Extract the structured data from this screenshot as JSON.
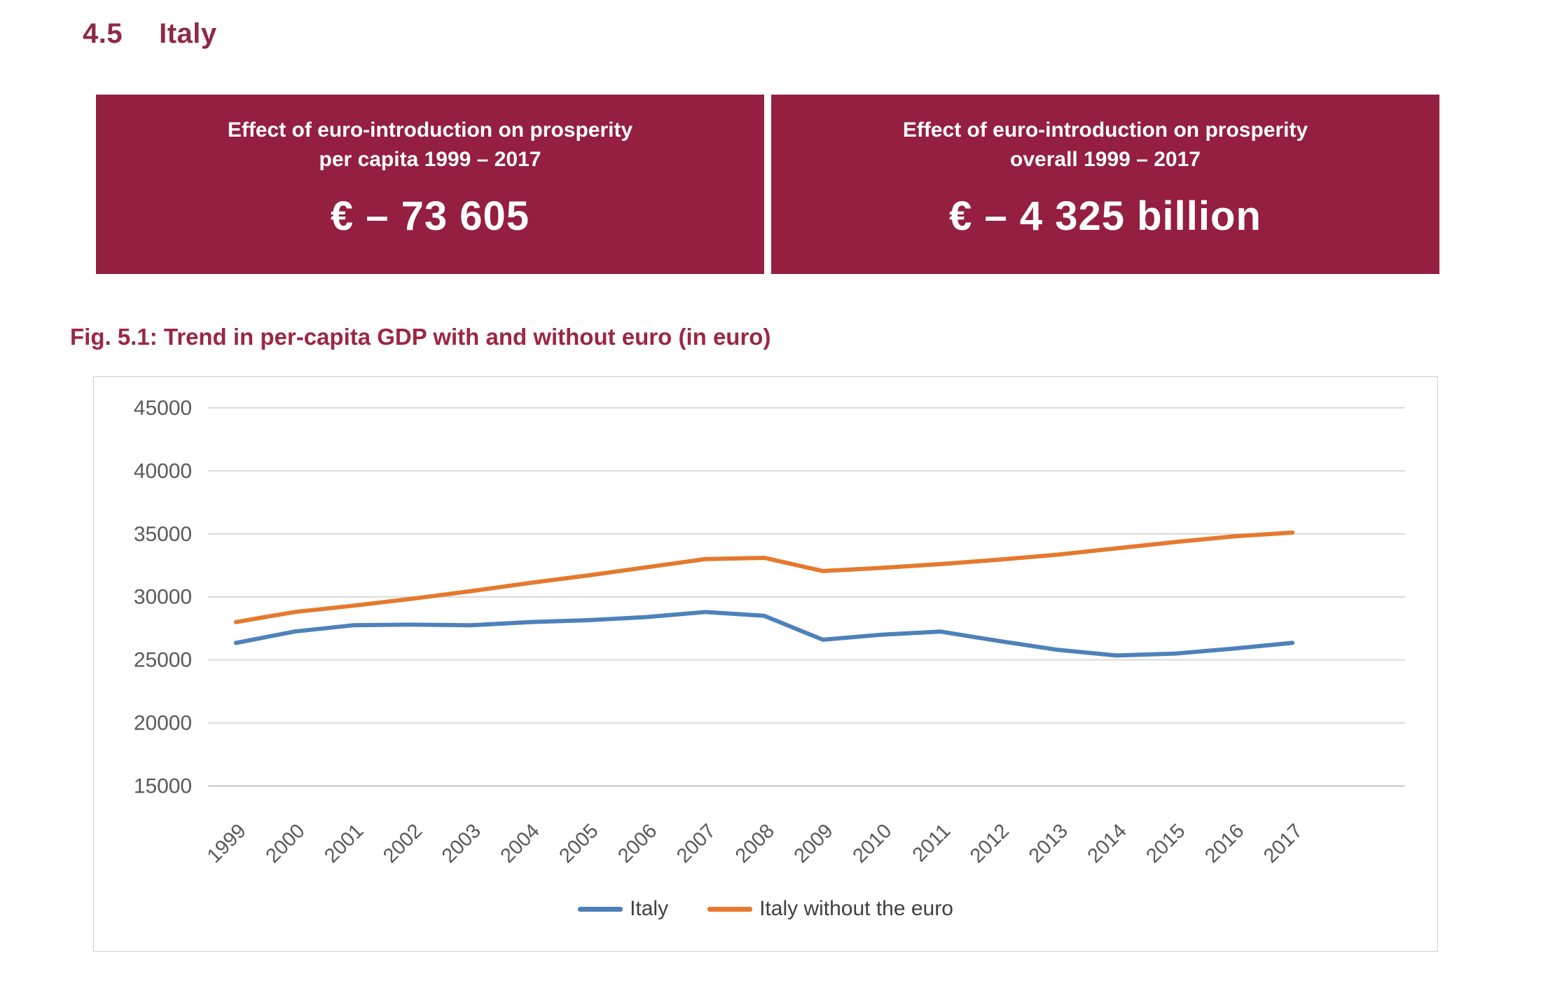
{
  "heading": {
    "number": "4.5",
    "title": "Italy"
  },
  "banner": {
    "background": "#941f40",
    "text_color": "#ffffff",
    "cards": [
      {
        "title_line1": "Effect of euro-introduction on prosperity",
        "title_line2": "per capita 1999 – 2017",
        "value": "€ – 73 605"
      },
      {
        "title_line1": "Effect of euro-introduction on prosperity",
        "title_line2": "overall 1999 – 2017",
        "value": "€ – 4 325 billion"
      }
    ]
  },
  "figure": {
    "caption": "Fig. 5.1: Trend in per-capita GDP with and without euro (in euro)",
    "caption_color": "#9b2743"
  },
  "chart_data": {
    "type": "line",
    "title": "",
    "xlabel": "",
    "ylabel": "",
    "categories": [
      "1999",
      "2000",
      "2001",
      "2002",
      "2003",
      "2004",
      "2005",
      "2006",
      "2007",
      "2008",
      "2009",
      "2010",
      "2011",
      "2012",
      "2013",
      "2014",
      "2015",
      "2016",
      "2017"
    ],
    "series": [
      {
        "name": "Italy",
        "color": "#4e81ba",
        "values": [
          26350,
          27250,
          27750,
          27800,
          27750,
          28000,
          28150,
          28400,
          28800,
          28500,
          26600,
          27000,
          27250,
          26500,
          25800,
          25350,
          25500,
          25900,
          26350
        ]
      },
      {
        "name": "Italy without the euro",
        "color": "#e5792e",
        "values": [
          28000,
          28800,
          29300,
          29850,
          30450,
          31100,
          31700,
          32350,
          33000,
          33100,
          32050,
          32300,
          32600,
          32950,
          33350,
          33850,
          34350,
          34800,
          35100
        ]
      }
    ],
    "ylim": [
      15000,
      45000
    ],
    "ytick_step": 5000,
    "grid": true,
    "legend_position": "bottom",
    "axis_label_color": "#595959",
    "gridline_color": "#d9d9d9",
    "axisline_color": "#c4c4c4"
  }
}
